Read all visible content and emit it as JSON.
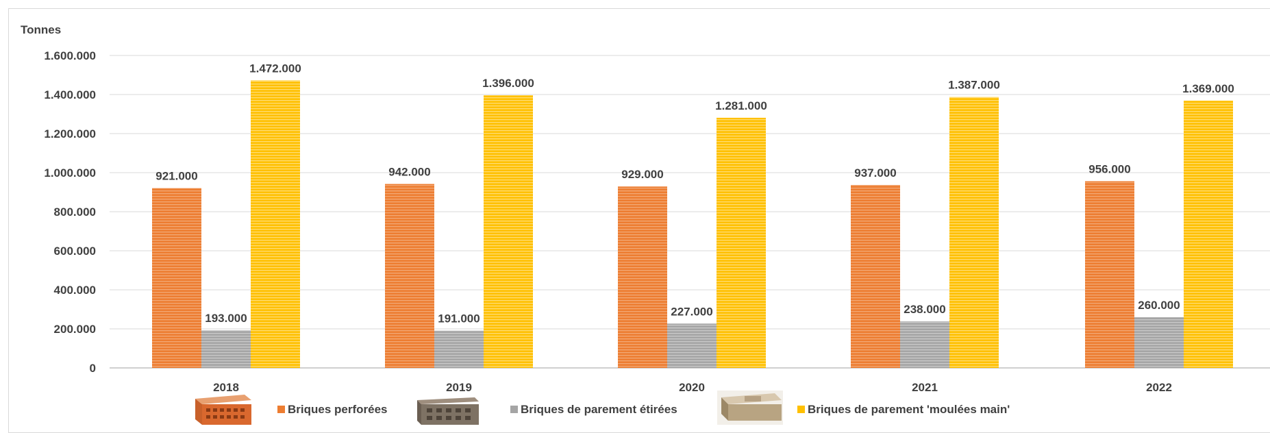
{
  "chart_data": {
    "type": "bar",
    "ylabel": "Tonnes",
    "categories": [
      "2018",
      "2019",
      "2020",
      "2021",
      "2022"
    ],
    "ylim": [
      0,
      1600000
    ],
    "yticks": [
      0,
      200000,
      400000,
      600000,
      800000,
      1000000,
      1200000,
      1400000,
      1600000
    ],
    "ytick_labels": [
      "0",
      "200.000",
      "400.000",
      "600.000",
      "800.000",
      "1.000.000",
      "1.200.000",
      "1.400.000",
      "1.600.000"
    ],
    "grid": true,
    "legend_position": "bottom",
    "series": [
      {
        "name": "Briques perforées",
        "color": "#ED7D31",
        "icon": "perforated-brick-photo",
        "values": [
          921000,
          942000,
          929000,
          937000,
          956000
        ],
        "labels": [
          "921.000",
          "942.000",
          "929.000",
          "937.000",
          "956.000"
        ]
      },
      {
        "name": "Briques de parement étirées",
        "color": "#A5A5A5",
        "icon": "extruded-facing-brick-photo",
        "values": [
          193000,
          191000,
          227000,
          238000,
          260000
        ],
        "labels": [
          "193.000",
          "191.000",
          "227.000",
          "238.000",
          "260.000"
        ]
      },
      {
        "name": "Briques de parement 'moulées main'",
        "color": "#FFC000",
        "icon": "hand-molded-brick-photo",
        "values": [
          1472000,
          1396000,
          1281000,
          1387000,
          1369000
        ],
        "labels": [
          "1.472.000",
          "1.396.000",
          "1.281.000",
          "1.387.000",
          "1.369.000"
        ]
      }
    ]
  }
}
